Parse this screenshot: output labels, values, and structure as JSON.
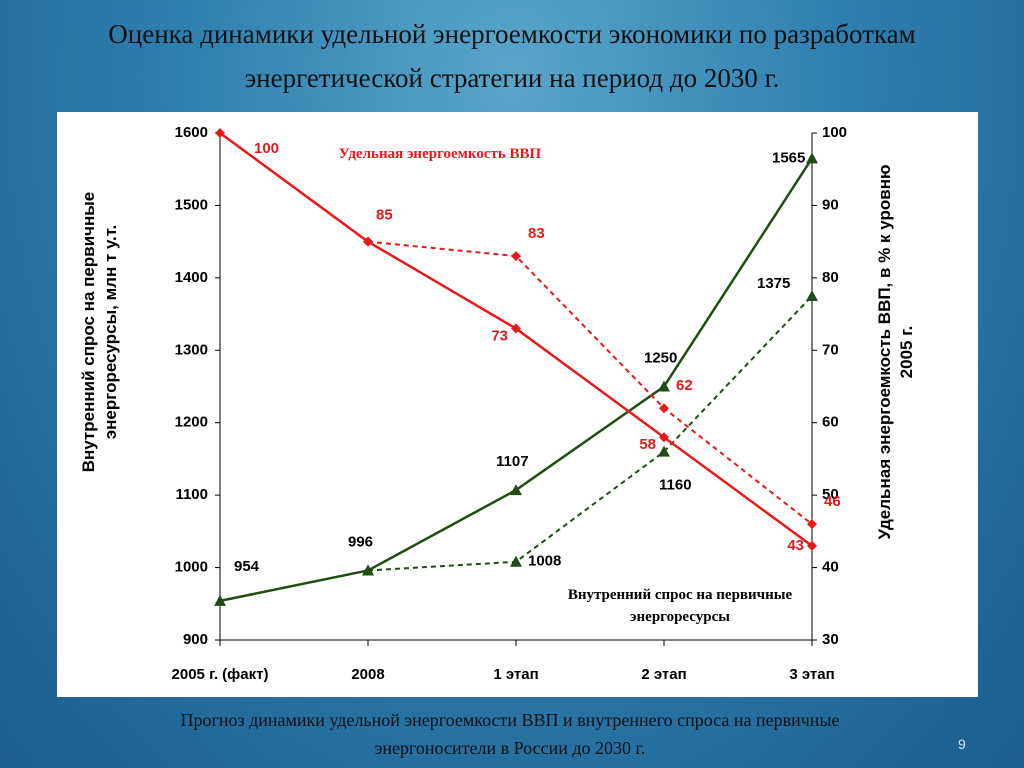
{
  "slide": {
    "title": "Оценка динамики удельной энергоемкости экономики по разработкам энергетической стратегии на период до 2030 г.",
    "caption": "Прогноз динамики удельной энергоемкости ВВП и внутреннего спроса на первичные энергоносители в России до 2030 г.",
    "page_number": 9
  },
  "chart_data": {
    "type": "line",
    "ylabel": "Внутренний спрос на первичные энергоресурсы, млн т у.т.",
    "y2label": "Удельная энергоемкость ВВП, в % к уровню 2005 г.",
    "categories": [
      "2005 г. (факт)",
      "2008",
      "1 этап",
      "2 этап",
      "3 этап"
    ],
    "ylim": [
      900,
      1600
    ],
    "yticks": [
      900,
      1000,
      1100,
      1200,
      1300,
      1400,
      1500,
      1600
    ],
    "y2lim": [
      30,
      100
    ],
    "y2ticks": [
      30,
      40,
      50,
      60,
      70,
      80,
      90,
      100
    ],
    "series": [
      {
        "name": "Внутренний спрос на первичные энергоресурсы",
        "color": "#1f4d13",
        "values": [
          954,
          996,
          1107,
          1250,
          1565
        ]
      },
      {
        "color": "#1f4d13",
        "dashed": true,
        "values": [
          null,
          996,
          1008,
          1160,
          1375
        ]
      },
      {
        "name": "Удельная энергоемкость ВВП",
        "color": "#e8191b",
        "axis": "y2",
        "values": [
          100,
          85,
          73,
          58,
          43
        ]
      },
      {
        "color": "#e8191b",
        "axis": "y2",
        "dashed": true,
        "values": [
          null,
          85,
          83,
          62,
          46
        ]
      }
    ]
  }
}
